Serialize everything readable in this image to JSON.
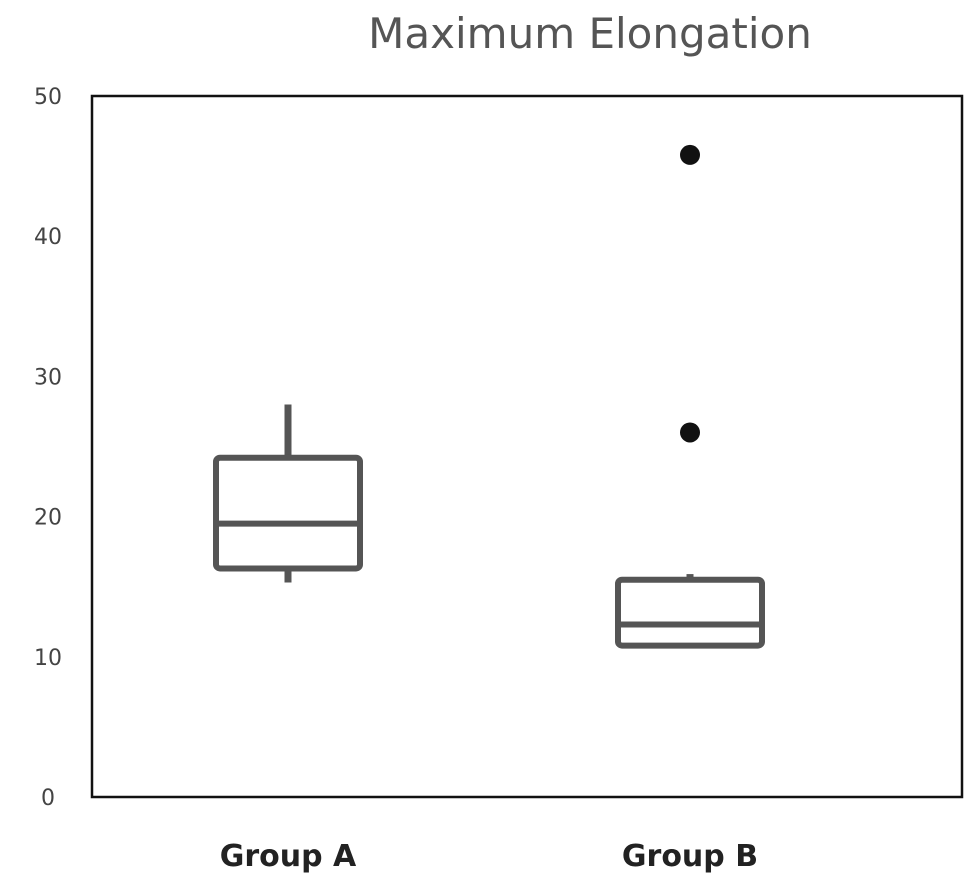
{
  "chart_data": {
    "type": "box",
    "title": "Maximum Elongation",
    "categories": [
      "Group A",
      "Group B"
    ],
    "ylim": [
      0,
      50
    ],
    "yticks": [
      0,
      10,
      20,
      30,
      40,
      50
    ],
    "grid": false,
    "boxes": [
      {
        "category": "Group A",
        "whisker_low": 15.3,
        "q1": 16.3,
        "median": 19.5,
        "q3": 24.2,
        "whisker_high": 28.0,
        "outliers": []
      },
      {
        "category": "Group B",
        "whisker_low": 10.8,
        "q1": 10.8,
        "median": 12.3,
        "q3": 15.5,
        "whisker_high": 15.9,
        "outliers": [
          26.0,
          45.8
        ]
      }
    ]
  }
}
